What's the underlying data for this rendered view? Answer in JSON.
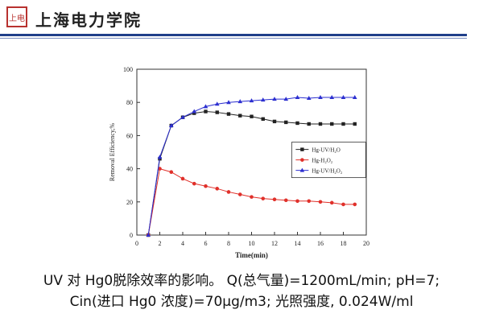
{
  "header": {
    "logo_text": "上电",
    "school_name": "上海电力学院",
    "bar_color": "#1f3f8a"
  },
  "caption": {
    "line1": "UV 对 Hg0脱除效率的影响。 Q(总气量)=1200mL/min; pH=7;",
    "line2": "Cin(进口 Hg0 浓度)=70μg/m3; 光照强度, 0.024W/ml"
  },
  "chart_data": {
    "type": "line",
    "xlabel": "Time(min)",
    "ylabel": "Removal Efficiency,%",
    "xlim": [
      0,
      20
    ],
    "ylim": [
      0,
      100
    ],
    "xticks": [
      0,
      2,
      4,
      6,
      8,
      10,
      12,
      14,
      16,
      18,
      20
    ],
    "yticks": [
      0,
      20,
      40,
      60,
      80,
      100
    ],
    "grid": false,
    "legend_position": "right-middle",
    "series": [
      {
        "name": "Hg-UV/H₂O",
        "color": "#222222",
        "marker": "square",
        "x": [
          1,
          2,
          3,
          4,
          5,
          6,
          7,
          8,
          9,
          10,
          11,
          12,
          13,
          14,
          15,
          16,
          17,
          18,
          19
        ],
        "values": [
          0,
          46,
          66,
          71,
          73.5,
          74.5,
          74,
          73,
          72,
          71.5,
          70,
          68.5,
          68,
          67.5,
          67,
          67,
          67,
          67,
          67
        ]
      },
      {
        "name": "Hg-H₂O₂",
        "color": "#e0302a",
        "marker": "circle",
        "x": [
          1,
          2,
          3,
          4,
          5,
          6,
          7,
          8,
          9,
          10,
          11,
          12,
          13,
          14,
          15,
          16,
          17,
          18,
          19
        ],
        "values": [
          0,
          40,
          38,
          34,
          31,
          29.5,
          28,
          26,
          24.5,
          23,
          22,
          21.5,
          21,
          20.5,
          20.5,
          20,
          19.5,
          18.5,
          18.5
        ]
      },
      {
        "name": "Hg-UV/H₂O₂",
        "color": "#2c2fd0",
        "marker": "triangle",
        "x": [
          1,
          2,
          3,
          4,
          5,
          6,
          7,
          8,
          9,
          10,
          11,
          12,
          13,
          14,
          15,
          16,
          17,
          18,
          19
        ],
        "values": [
          0,
          47,
          66,
          71,
          74.5,
          77.5,
          79,
          80,
          80.5,
          81,
          81.5,
          82,
          82,
          83,
          82.5,
          83,
          83,
          83,
          83
        ]
      }
    ]
  }
}
